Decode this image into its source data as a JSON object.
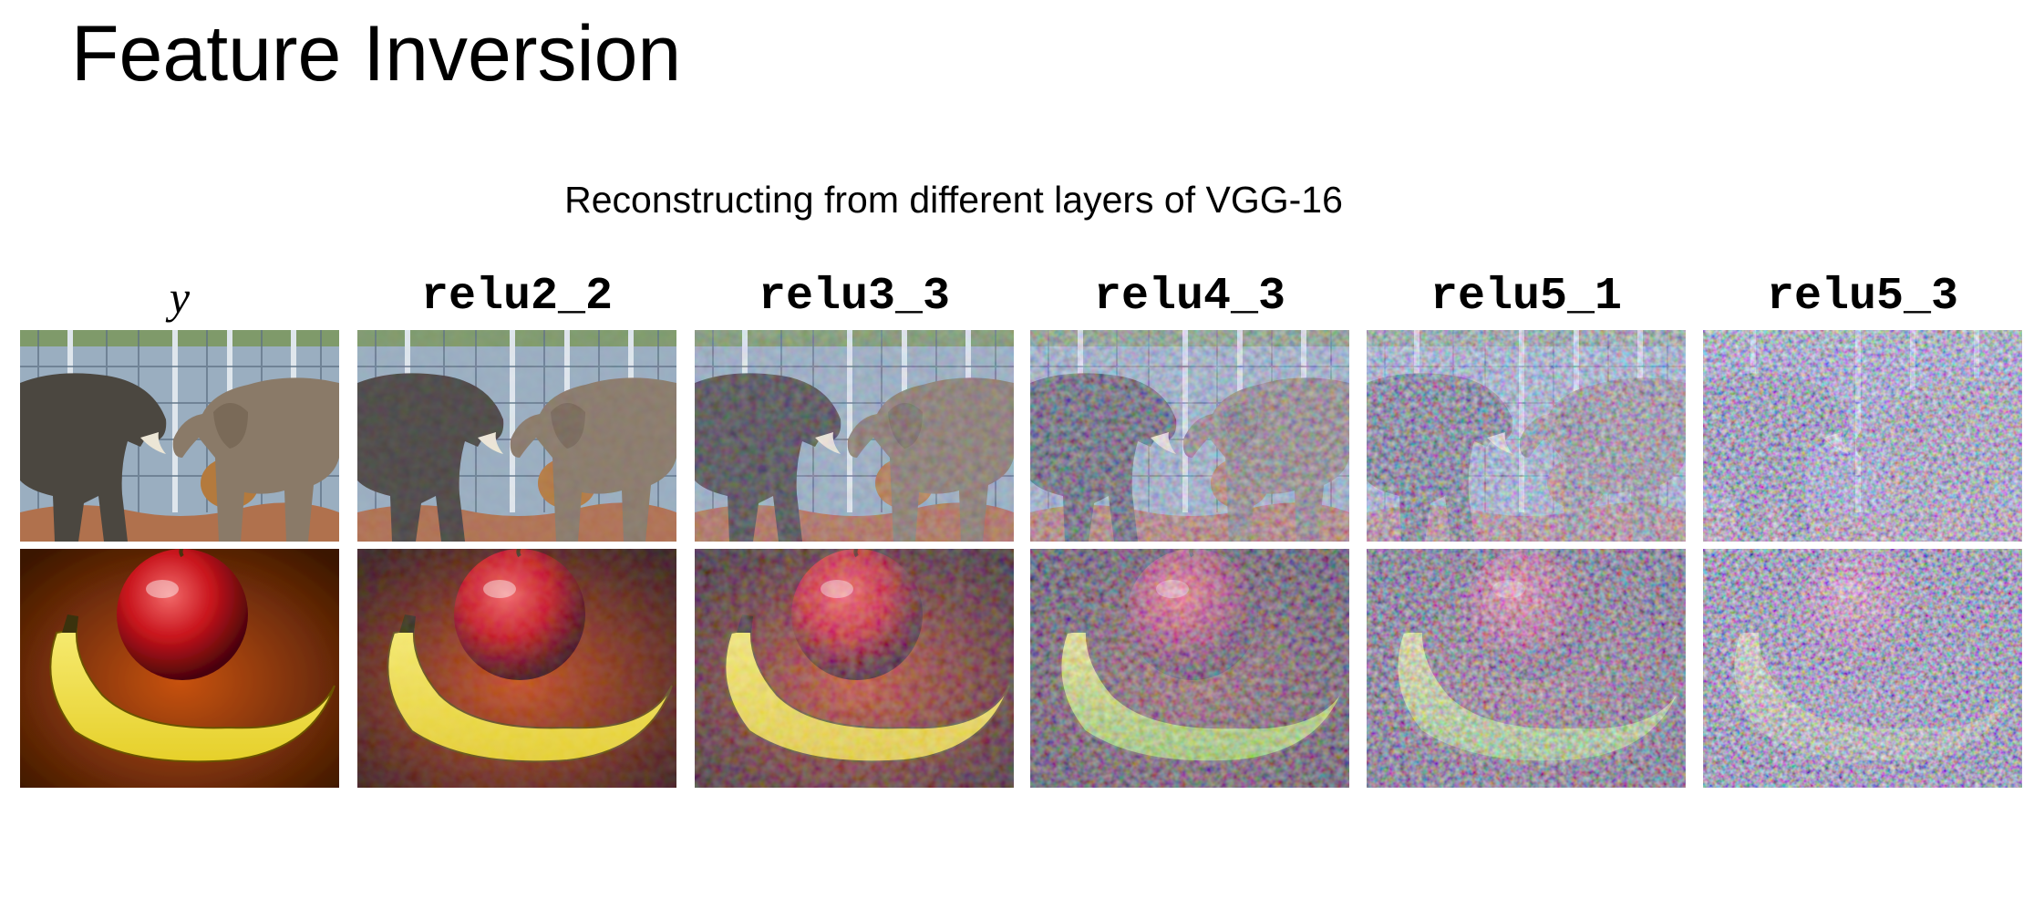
{
  "slide": {
    "title": "Feature Inversion",
    "subtitle": "Reconstructing from different layers of VGG-16"
  },
  "columns": [
    {
      "label": "y",
      "noise": 0
    },
    {
      "label": "relu2_2",
      "noise": 0.05
    },
    {
      "label": "relu3_3",
      "noise": 0.18
    },
    {
      "label": "relu4_3",
      "noise": 0.45
    },
    {
      "label": "relu5_1",
      "noise": 0.7
    },
    {
      "label": "relu5_3",
      "noise": 0.95
    }
  ],
  "rows": [
    {
      "image": "two elephants"
    },
    {
      "image": "apple and banana"
    }
  ],
  "colors": {
    "background": "#ffffff",
    "text": "#000000"
  }
}
